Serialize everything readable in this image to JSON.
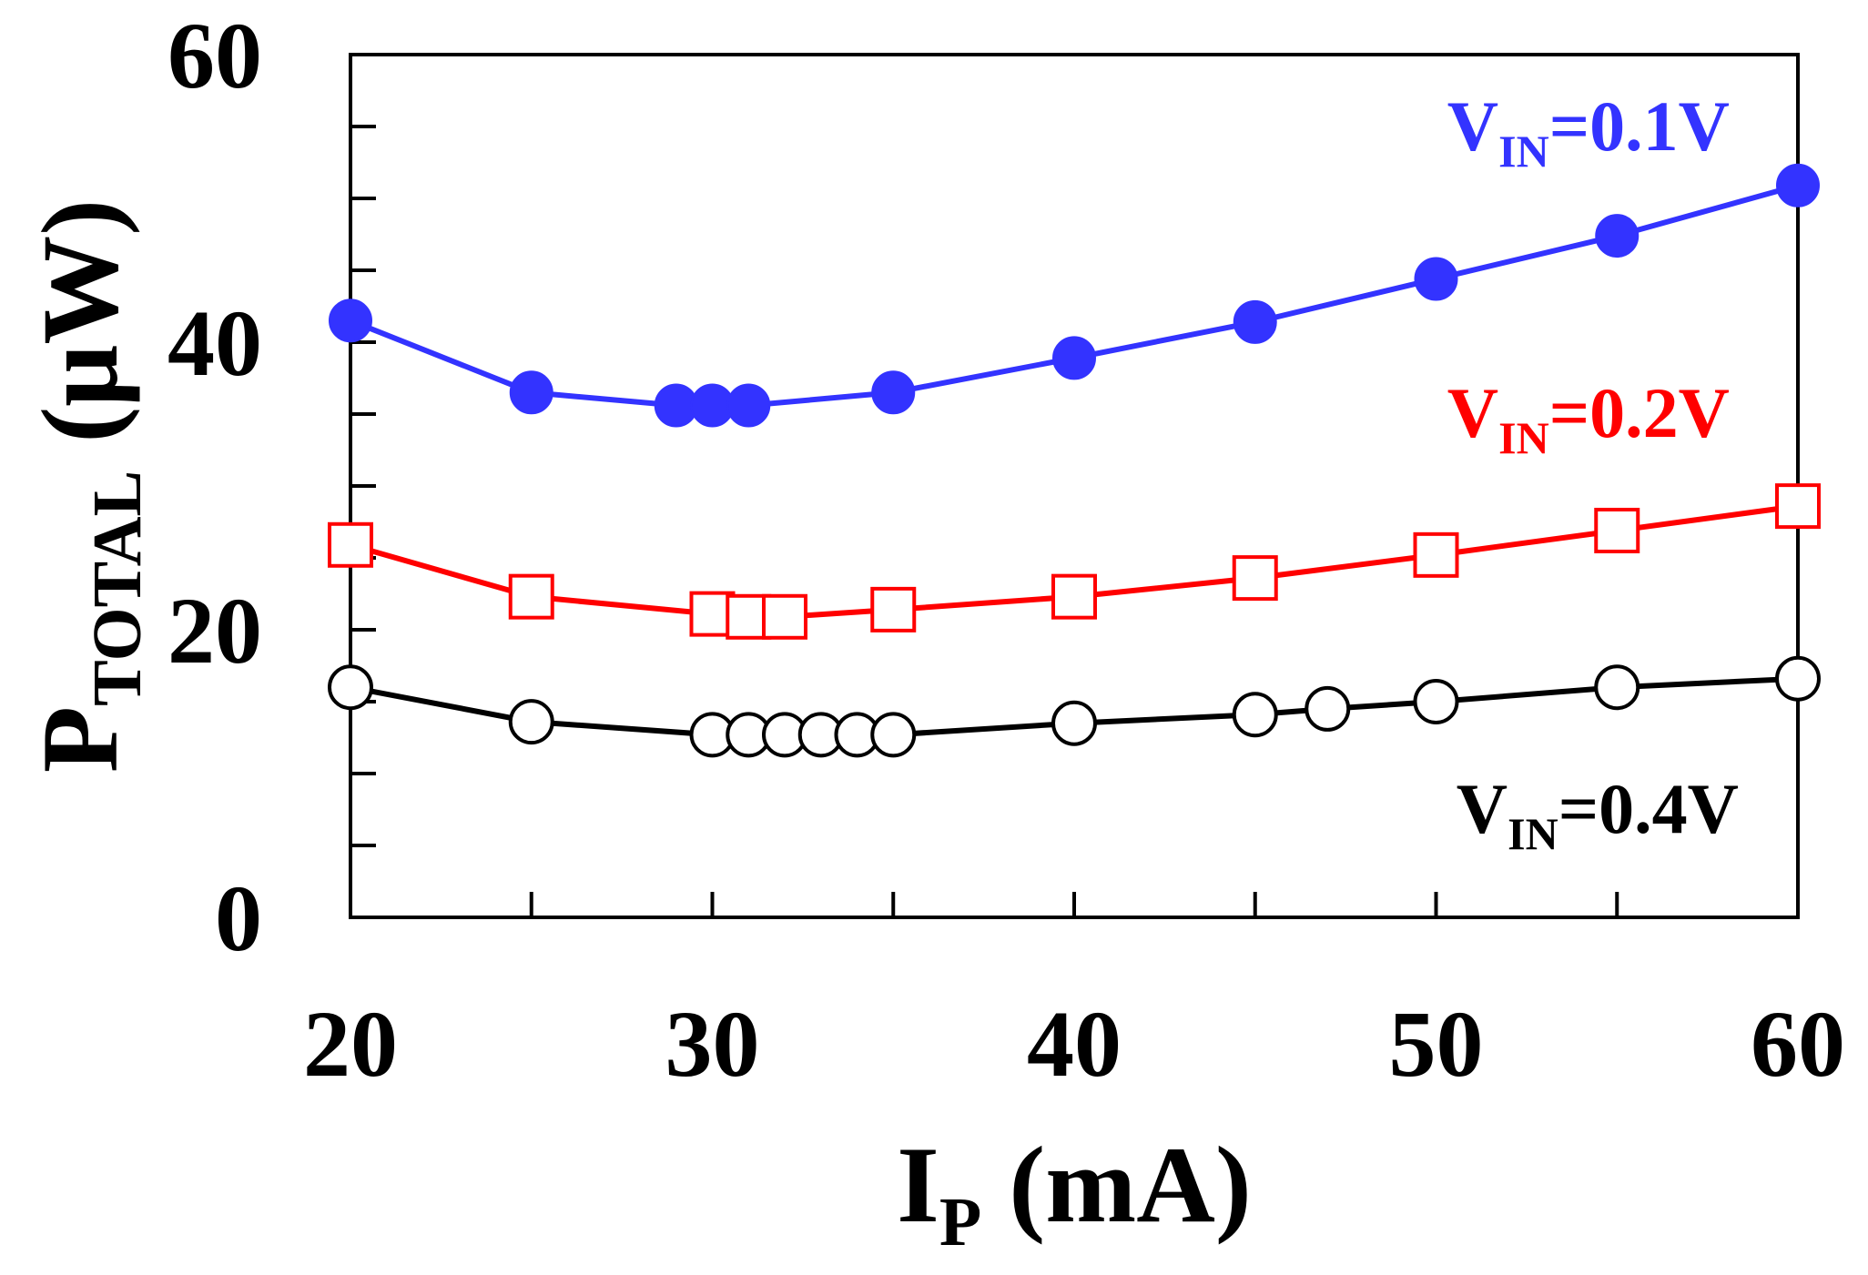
{
  "chart_data": {
    "type": "line",
    "title": "",
    "xlabel": {
      "main": "I",
      "sub": "P",
      "unit": " (mA)"
    },
    "ylabel": {
      "main": "P",
      "sub": "TOTAL",
      "unit": " (μW)"
    },
    "xlim": [
      20,
      60
    ],
    "ylim": [
      0,
      60
    ],
    "xticks": [
      20,
      30,
      40,
      50,
      60
    ],
    "yticks": [
      0,
      20,
      40,
      60
    ],
    "yminor": [
      5,
      10,
      15,
      25,
      30,
      35,
      45,
      50,
      55
    ],
    "grid": false,
    "series": [
      {
        "name": "VIN=0.1V",
        "label": {
          "main": "V",
          "sub": "IN",
          "value": "=0.1V"
        },
        "color": "#3333ff",
        "marker": "filled-circle",
        "x": [
          20,
          25,
          29,
          30,
          31,
          35,
          40,
          45,
          50,
          55,
          60
        ],
        "y": [
          41.5,
          36.5,
          35.6,
          35.6,
          35.6,
          36.5,
          38.9,
          41.4,
          44.4,
          47.4,
          50.9
        ]
      },
      {
        "name": "VIN=0.2V",
        "label": {
          "main": "V",
          "sub": "IN",
          "value": "=0.2V"
        },
        "color": "#ff0000",
        "marker": "open-square",
        "x": [
          20,
          25,
          30,
          31,
          32,
          35,
          40,
          45,
          50,
          55,
          60
        ],
        "y": [
          25.9,
          22.3,
          21.1,
          20.9,
          20.9,
          21.4,
          22.3,
          23.6,
          25.2,
          26.9,
          28.6
        ]
      },
      {
        "name": "VIN=0.4V",
        "label": {
          "main": "V",
          "sub": "IN",
          "value": "=0.4V"
        },
        "color": "#000000",
        "marker": "open-circle",
        "x": [
          20,
          25,
          30,
          31,
          32,
          33,
          34,
          35,
          40,
          45,
          47,
          50,
          55,
          60
        ],
        "y": [
          16.0,
          13.6,
          12.7,
          12.7,
          12.7,
          12.7,
          12.7,
          12.7,
          13.5,
          14.1,
          14.5,
          15.0,
          16.0,
          16.6
        ]
      }
    ]
  }
}
